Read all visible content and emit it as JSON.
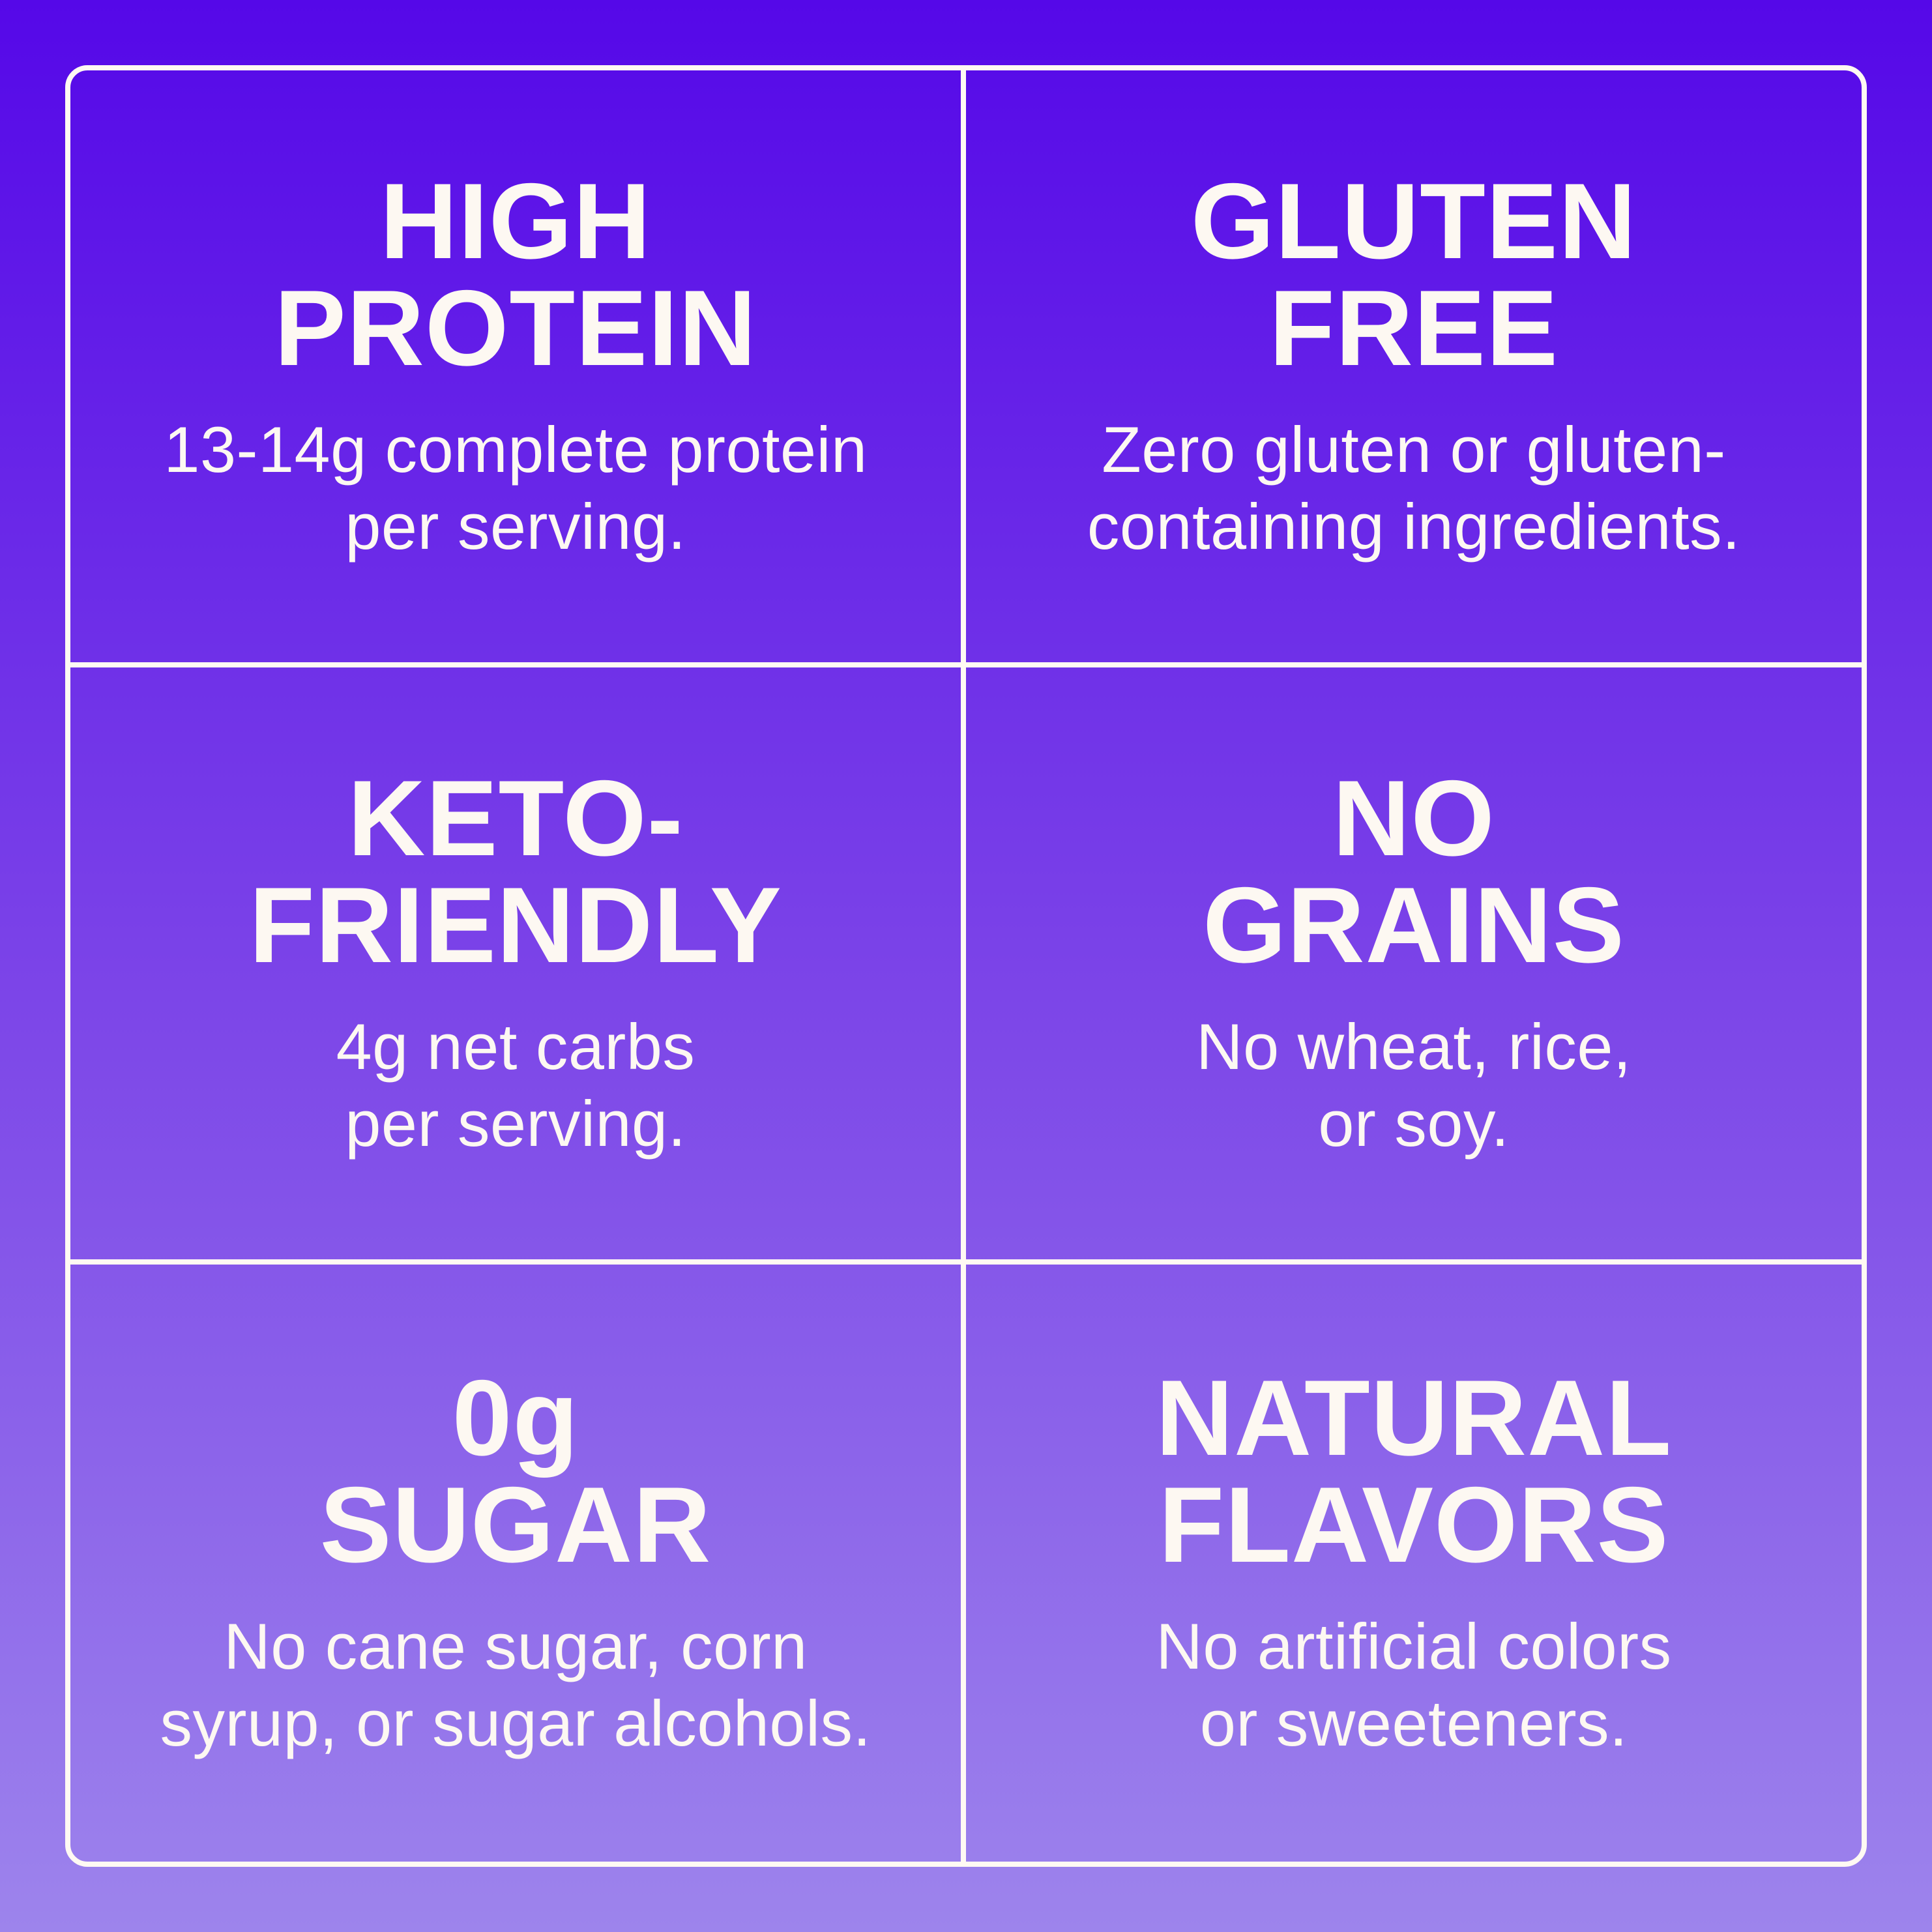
{
  "theme": {
    "gradient_top": "#5508E8",
    "gradient_mid": "#7B43E8",
    "gradient_bottom": "#9D84EC",
    "line_color": "#FFF9F3",
    "text_color": "#FDF8F2"
  },
  "cells": [
    {
      "title": [
        "HIGH",
        "PROTEIN"
      ],
      "desc": [
        "13-14g complete protein",
        "per serving."
      ]
    },
    {
      "title": [
        "GLUTEN",
        "FREE"
      ],
      "desc": [
        "Zero gluten or gluten-",
        "containing ingredients."
      ]
    },
    {
      "title": [
        "KETO-",
        "FRIENDLY"
      ],
      "desc": [
        "4g net carbs",
        "per serving."
      ]
    },
    {
      "title": [
        "NO",
        "GRAINS"
      ],
      "desc": [
        "No wheat, rice,",
        "or soy."
      ]
    },
    {
      "title": [
        "0g",
        "SUGAR"
      ],
      "desc": [
        "No cane sugar, corn",
        "syrup, or sugar alcohols."
      ]
    },
    {
      "title": [
        "NATURAL",
        "FLAVORS"
      ],
      "desc": [
        "No artificial colors",
        "or sweeteners."
      ]
    }
  ]
}
